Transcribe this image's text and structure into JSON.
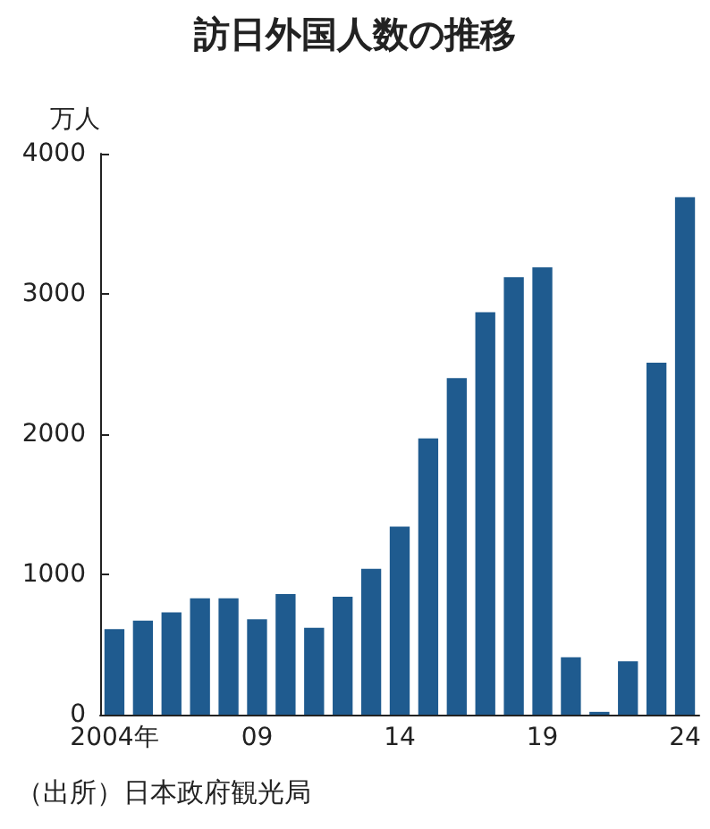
{
  "chart_data": {
    "type": "bar",
    "title": "訪日外国人数の推移",
    "ylabel": "万人",
    "categories": [
      "2004年",
      null,
      null,
      null,
      null,
      "09",
      null,
      null,
      null,
      null,
      "14",
      null,
      null,
      null,
      null,
      "19",
      null,
      null,
      null,
      null,
      "24"
    ],
    "values": [
      610,
      670,
      730,
      830,
      830,
      680,
      860,
      620,
      840,
      1040,
      1340,
      1970,
      2400,
      2870,
      3120,
      3190,
      410,
      20,
      380,
      2510,
      3690
    ],
    "color": "#1f5b8f",
    "ylim": [
      0,
      4000
    ],
    "yticks": [
      0,
      1000,
      2000,
      3000,
      4000
    ],
    "grid": false,
    "annotations": [
      "（出所）日本政府観光局"
    ]
  }
}
